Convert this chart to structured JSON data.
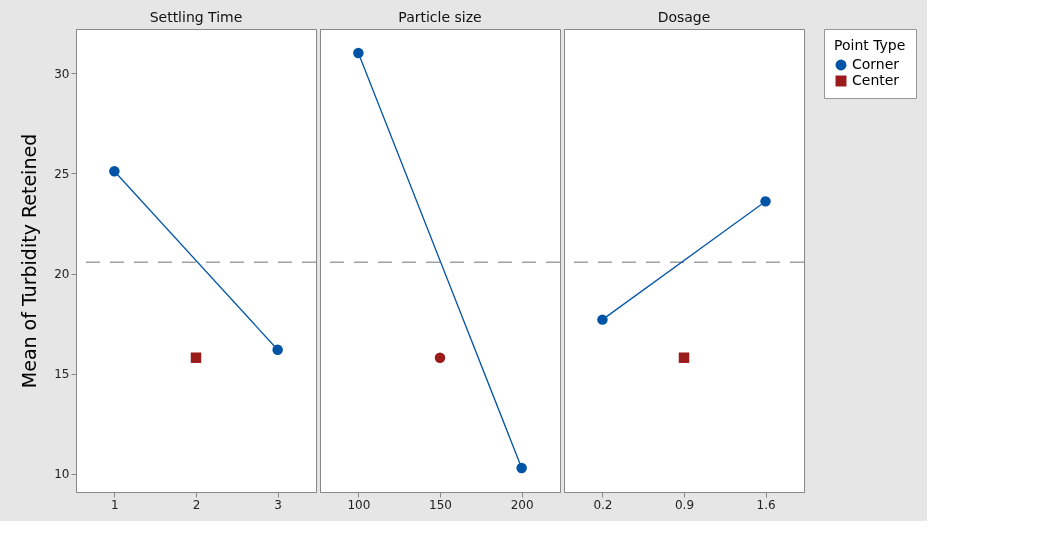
{
  "chart_data": [
    {
      "type": "line",
      "title": "Settling Time",
      "ylabel": "Mean of Turbidity Reteined",
      "legend": "right",
      "legend_title": "Point Type",
      "xlim": [
        0.53,
        3.47
      ],
      "xticks": [
        1,
        2,
        3
      ],
      "ylim": [
        9.1,
        32.2
      ],
      "yticks": [
        10,
        15,
        20,
        25,
        30
      ],
      "grid": false,
      "series": [
        {
          "name": "Corner",
          "color": "#0054a6",
          "type": "line",
          "marker": "circle",
          "x": [
            1,
            3
          ],
          "values": [
            25.1,
            16.2
          ]
        },
        {
          "name": "Center",
          "color": "#9b1b1b",
          "type": "scatter",
          "marker": "square",
          "x": [
            2
          ],
          "values": [
            15.8
          ]
        }
      ],
      "ref_lines": [
        {
          "axis": "y",
          "value": 20.56,
          "color": "#a0a0a0",
          "line_style": "dashed"
        }
      ]
    },
    {
      "type": "line",
      "title": "Particle size",
      "xlim": [
        76.5,
        223.5
      ],
      "xticks": [
        100,
        150,
        200
      ],
      "ylim": [
        9.1,
        32.2
      ],
      "tick_labels": "x",
      "grid": false,
      "series": [
        {
          "color": "#0054a6",
          "type": "line",
          "marker": "circle",
          "x": [
            100,
            200
          ],
          "values": [
            31.0,
            10.3
          ]
        },
        {
          "color": "#9b1b1b",
          "type": "scatter",
          "marker": "circle",
          "x": [
            150
          ],
          "values": [
            15.8
          ]
        }
      ],
      "ref_lines": [
        {
          "axis": "y",
          "value": 20.56,
          "color": "#a0a0a0",
          "line_style": "dashed"
        }
      ]
    },
    {
      "type": "line",
      "title": "Dosage",
      "xlim": [
        -0.13,
        1.93
      ],
      "xticks": [
        0.2,
        0.9,
        1.6
      ],
      "ylim": [
        9.1,
        32.2
      ],
      "tick_labels": "x",
      "grid": false,
      "series": [
        {
          "color": "#0054a6",
          "type": "line",
          "marker": "circle",
          "x": [
            0.2,
            1.6
          ],
          "values": [
            17.7,
            23.6
          ]
        },
        {
          "color": "#9b1b1b",
          "type": "scatter",
          "marker": "square",
          "x": [
            0.9
          ],
          "values": [
            15.8
          ]
        }
      ],
      "ref_lines": [
        {
          "axis": "y",
          "value": 20.56,
          "color": "#a0a0a0",
          "line_style": "dashed"
        }
      ]
    }
  ]
}
